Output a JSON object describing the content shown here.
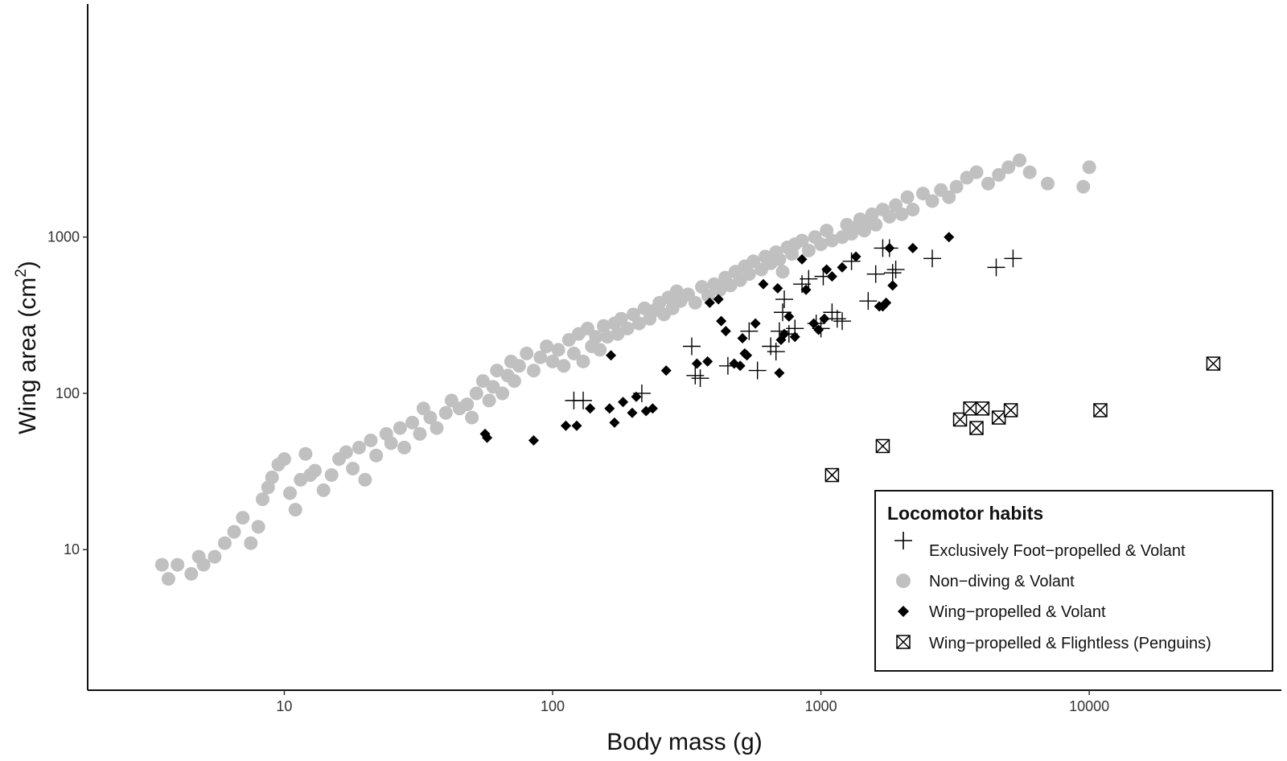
{
  "chart_data": {
    "type": "scatter",
    "title": "",
    "xlabel": "Body mass (g)",
    "ylabel": "Wing area (cm2)",
    "ylabel_main": "Wing area (cm",
    "ylabel_sup": "2",
    "ylabel_close": ")",
    "x_scale": "log",
    "y_scale": "log",
    "xlim": [
      1.85,
      52000
    ],
    "ylim": [
      1.26,
      31000
    ],
    "x_ticks": [
      10,
      100,
      1000,
      10000
    ],
    "x_tick_labels": [
      "10",
      "100",
      "1000",
      "10000"
    ],
    "y_ticks": [
      10,
      100,
      1000
    ],
    "y_tick_labels": [
      "10",
      "100",
      "1000"
    ],
    "grid": false,
    "legend": {
      "title": "Locomotor habits",
      "position": "bottom-right",
      "entries": [
        "Exclusively Foot−propelled & Volant",
        "Non−diving & Volant",
        "Wing−propelled & Volant",
        "Wing−propelled & Flightless (Penguins)"
      ]
    },
    "series": [
      {
        "name": "Exclusively Foot−propelled & Volant",
        "marker": "plus",
        "color": "#000000",
        "points": [
          [
            120,
            90
          ],
          [
            130,
            90
          ],
          [
            215,
            100
          ],
          [
            330,
            200
          ],
          [
            340,
            130
          ],
          [
            355,
            125
          ],
          [
            450,
            150
          ],
          [
            540,
            250
          ],
          [
            580,
            140
          ],
          [
            650,
            200
          ],
          [
            680,
            185
          ],
          [
            700,
            250
          ],
          [
            720,
            330
          ],
          [
            730,
            400
          ],
          [
            760,
            240
          ],
          [
            800,
            260
          ],
          [
            850,
            500
          ],
          [
            900,
            540
          ],
          [
            960,
            280
          ],
          [
            1000,
            260
          ],
          [
            1020,
            560
          ],
          [
            1100,
            330
          ],
          [
            1150,
            300
          ],
          [
            1200,
            290
          ],
          [
            1300,
            700
          ],
          [
            1500,
            390
          ],
          [
            1600,
            580
          ],
          [
            1700,
            850
          ],
          [
            1800,
            850
          ],
          [
            1850,
            590
          ],
          [
            1900,
            620
          ],
          [
            2600,
            730
          ],
          [
            4500,
            640
          ],
          [
            5200,
            730
          ]
        ]
      },
      {
        "name": "Non−diving & Volant",
        "marker": "circle",
        "color": "#c0c0c0",
        "points": [
          [
            3.5,
            8
          ],
          [
            3.7,
            6.5
          ],
          [
            4,
            8
          ],
          [
            4.5,
            7
          ],
          [
            4.8,
            9
          ],
          [
            5,
            8
          ],
          [
            5.5,
            9
          ],
          [
            6,
            11
          ],
          [
            6.5,
            13
          ],
          [
            7,
            16
          ],
          [
            7.5,
            11
          ],
          [
            8,
            14
          ],
          [
            8.3,
            21
          ],
          [
            8.7,
            25
          ],
          [
            9,
            29
          ],
          [
            9.5,
            35
          ],
          [
            10,
            38
          ],
          [
            10.5,
            23
          ],
          [
            11,
            18
          ],
          [
            11.5,
            28
          ],
          [
            12,
            41
          ],
          [
            12.5,
            30
          ],
          [
            13,
            32
          ],
          [
            14,
            24
          ],
          [
            15,
            30
          ],
          [
            16,
            38
          ],
          [
            17,
            42
          ],
          [
            18,
            33
          ],
          [
            19,
            45
          ],
          [
            20,
            28
          ],
          [
            21,
            50
          ],
          [
            22,
            40
          ],
          [
            24,
            55
          ],
          [
            25,
            48
          ],
          [
            27,
            60
          ],
          [
            28,
            45
          ],
          [
            30,
            65
          ],
          [
            32,
            55
          ],
          [
            33,
            80
          ],
          [
            35,
            70
          ],
          [
            37,
            60
          ],
          [
            40,
            75
          ],
          [
            42,
            90
          ],
          [
            45,
            80
          ],
          [
            48,
            85
          ],
          [
            50,
            70
          ],
          [
            52,
            100
          ],
          [
            55,
            120
          ],
          [
            58,
            90
          ],
          [
            60,
            110
          ],
          [
            62,
            140
          ],
          [
            65,
            100
          ],
          [
            68,
            130
          ],
          [
            70,
            160
          ],
          [
            72,
            120
          ],
          [
            75,
            150
          ],
          [
            80,
            180
          ],
          [
            85,
            140
          ],
          [
            90,
            170
          ],
          [
            95,
            200
          ],
          [
            100,
            160
          ],
          [
            105,
            190
          ],
          [
            110,
            150
          ],
          [
            115,
            220
          ],
          [
            120,
            180
          ],
          [
            125,
            240
          ],
          [
            130,
            160
          ],
          [
            135,
            260
          ],
          [
            140,
            200
          ],
          [
            145,
            230
          ],
          [
            150,
            190
          ],
          [
            155,
            270
          ],
          [
            160,
            230
          ],
          [
            170,
            280
          ],
          [
            175,
            240
          ],
          [
            180,
            300
          ],
          [
            190,
            260
          ],
          [
            200,
            320
          ],
          [
            210,
            280
          ],
          [
            220,
            350
          ],
          [
            230,
            300
          ],
          [
            240,
            340
          ],
          [
            250,
            380
          ],
          [
            260,
            320
          ],
          [
            270,
            410
          ],
          [
            280,
            350
          ],
          [
            290,
            450
          ],
          [
            300,
            390
          ],
          [
            320,
            430
          ],
          [
            340,
            380
          ],
          [
            360,
            480
          ],
          [
            380,
            420
          ],
          [
            400,
            500
          ],
          [
            420,
            460
          ],
          [
            440,
            550
          ],
          [
            460,
            490
          ],
          [
            480,
            600
          ],
          [
            500,
            530
          ],
          [
            520,
            650
          ],
          [
            540,
            580
          ],
          [
            560,
            700
          ],
          [
            600,
            620
          ],
          [
            620,
            750
          ],
          [
            650,
            680
          ],
          [
            680,
            800
          ],
          [
            700,
            720
          ],
          [
            720,
            600
          ],
          [
            750,
            860
          ],
          [
            780,
            780
          ],
          [
            800,
            900
          ],
          [
            850,
            950
          ],
          [
            900,
            820
          ],
          [
            950,
            1000
          ],
          [
            1000,
            900
          ],
          [
            1050,
            1100
          ],
          [
            1100,
            950
          ],
          [
            1200,
            1000
          ],
          [
            1250,
            1200
          ],
          [
            1300,
            1050
          ],
          [
            1350,
            1150
          ],
          [
            1400,
            1300
          ],
          [
            1450,
            1100
          ],
          [
            1500,
            1250
          ],
          [
            1550,
            1400
          ],
          [
            1600,
            1200
          ],
          [
            1700,
            1500
          ],
          [
            1800,
            1350
          ],
          [
            1900,
            1600
          ],
          [
            2000,
            1400
          ],
          [
            2100,
            1800
          ],
          [
            2200,
            1500
          ],
          [
            2400,
            1900
          ],
          [
            2600,
            1700
          ],
          [
            2800,
            2000
          ],
          [
            3000,
            1800
          ],
          [
            3200,
            2100
          ],
          [
            3500,
            2400
          ],
          [
            3800,
            2600
          ],
          [
            4200,
            2200
          ],
          [
            4600,
            2500
          ],
          [
            5000,
            2800
          ],
          [
            5500,
            3100
          ],
          [
            6000,
            2600
          ],
          [
            7000,
            2200
          ],
          [
            9500,
            2100
          ],
          [
            10000,
            2800
          ]
        ]
      },
      {
        "name": "Wing−propelled & Volant",
        "marker": "diamond",
        "color": "#000000",
        "points": [
          [
            56,
            55
          ],
          [
            57,
            52
          ],
          [
            85,
            50
          ],
          [
            112,
            62
          ],
          [
            123,
            62
          ],
          [
            138,
            80
          ],
          [
            163,
            80
          ],
          [
            165,
            175
          ],
          [
            170,
            65
          ],
          [
            183,
            88
          ],
          [
            198,
            75
          ],
          [
            205,
            95
          ],
          [
            223,
            77
          ],
          [
            236,
            80
          ],
          [
            265,
            140
          ],
          [
            345,
            155
          ],
          [
            378,
            160
          ],
          [
            385,
            380
          ],
          [
            415,
            400
          ],
          [
            425,
            290
          ],
          [
            442,
            250
          ],
          [
            475,
            155
          ],
          [
            500,
            150
          ],
          [
            510,
            225
          ],
          [
            520,
            180
          ],
          [
            530,
            175
          ],
          [
            570,
            280
          ],
          [
            610,
            500
          ],
          [
            690,
            470
          ],
          [
            700,
            135
          ],
          [
            710,
            220
          ],
          [
            730,
            240
          ],
          [
            760,
            310
          ],
          [
            800,
            230
          ],
          [
            850,
            720
          ],
          [
            880,
            460
          ],
          [
            940,
            280
          ],
          [
            980,
            255
          ],
          [
            1030,
            300
          ],
          [
            1050,
            620
          ],
          [
            1100,
            560
          ],
          [
            1200,
            640
          ],
          [
            1350,
            750
          ],
          [
            1650,
            360
          ],
          [
            1700,
            360
          ],
          [
            1750,
            380
          ],
          [
            1800,
            850
          ],
          [
            1850,
            490
          ],
          [
            2200,
            850
          ],
          [
            3000,
            1000
          ]
        ]
      },
      {
        "name": "Wing−propelled & Flightless (Penguins)",
        "marker": "boxed-x",
        "color": "#000000",
        "points": [
          [
            1100,
            30
          ],
          [
            1700,
            46
          ],
          [
            3300,
            68
          ],
          [
            3600,
            80
          ],
          [
            3800,
            60
          ],
          [
            4000,
            80
          ],
          [
            4600,
            70
          ],
          [
            5100,
            78
          ],
          [
            11000,
            78
          ],
          [
            29000,
            155
          ]
        ]
      }
    ]
  }
}
